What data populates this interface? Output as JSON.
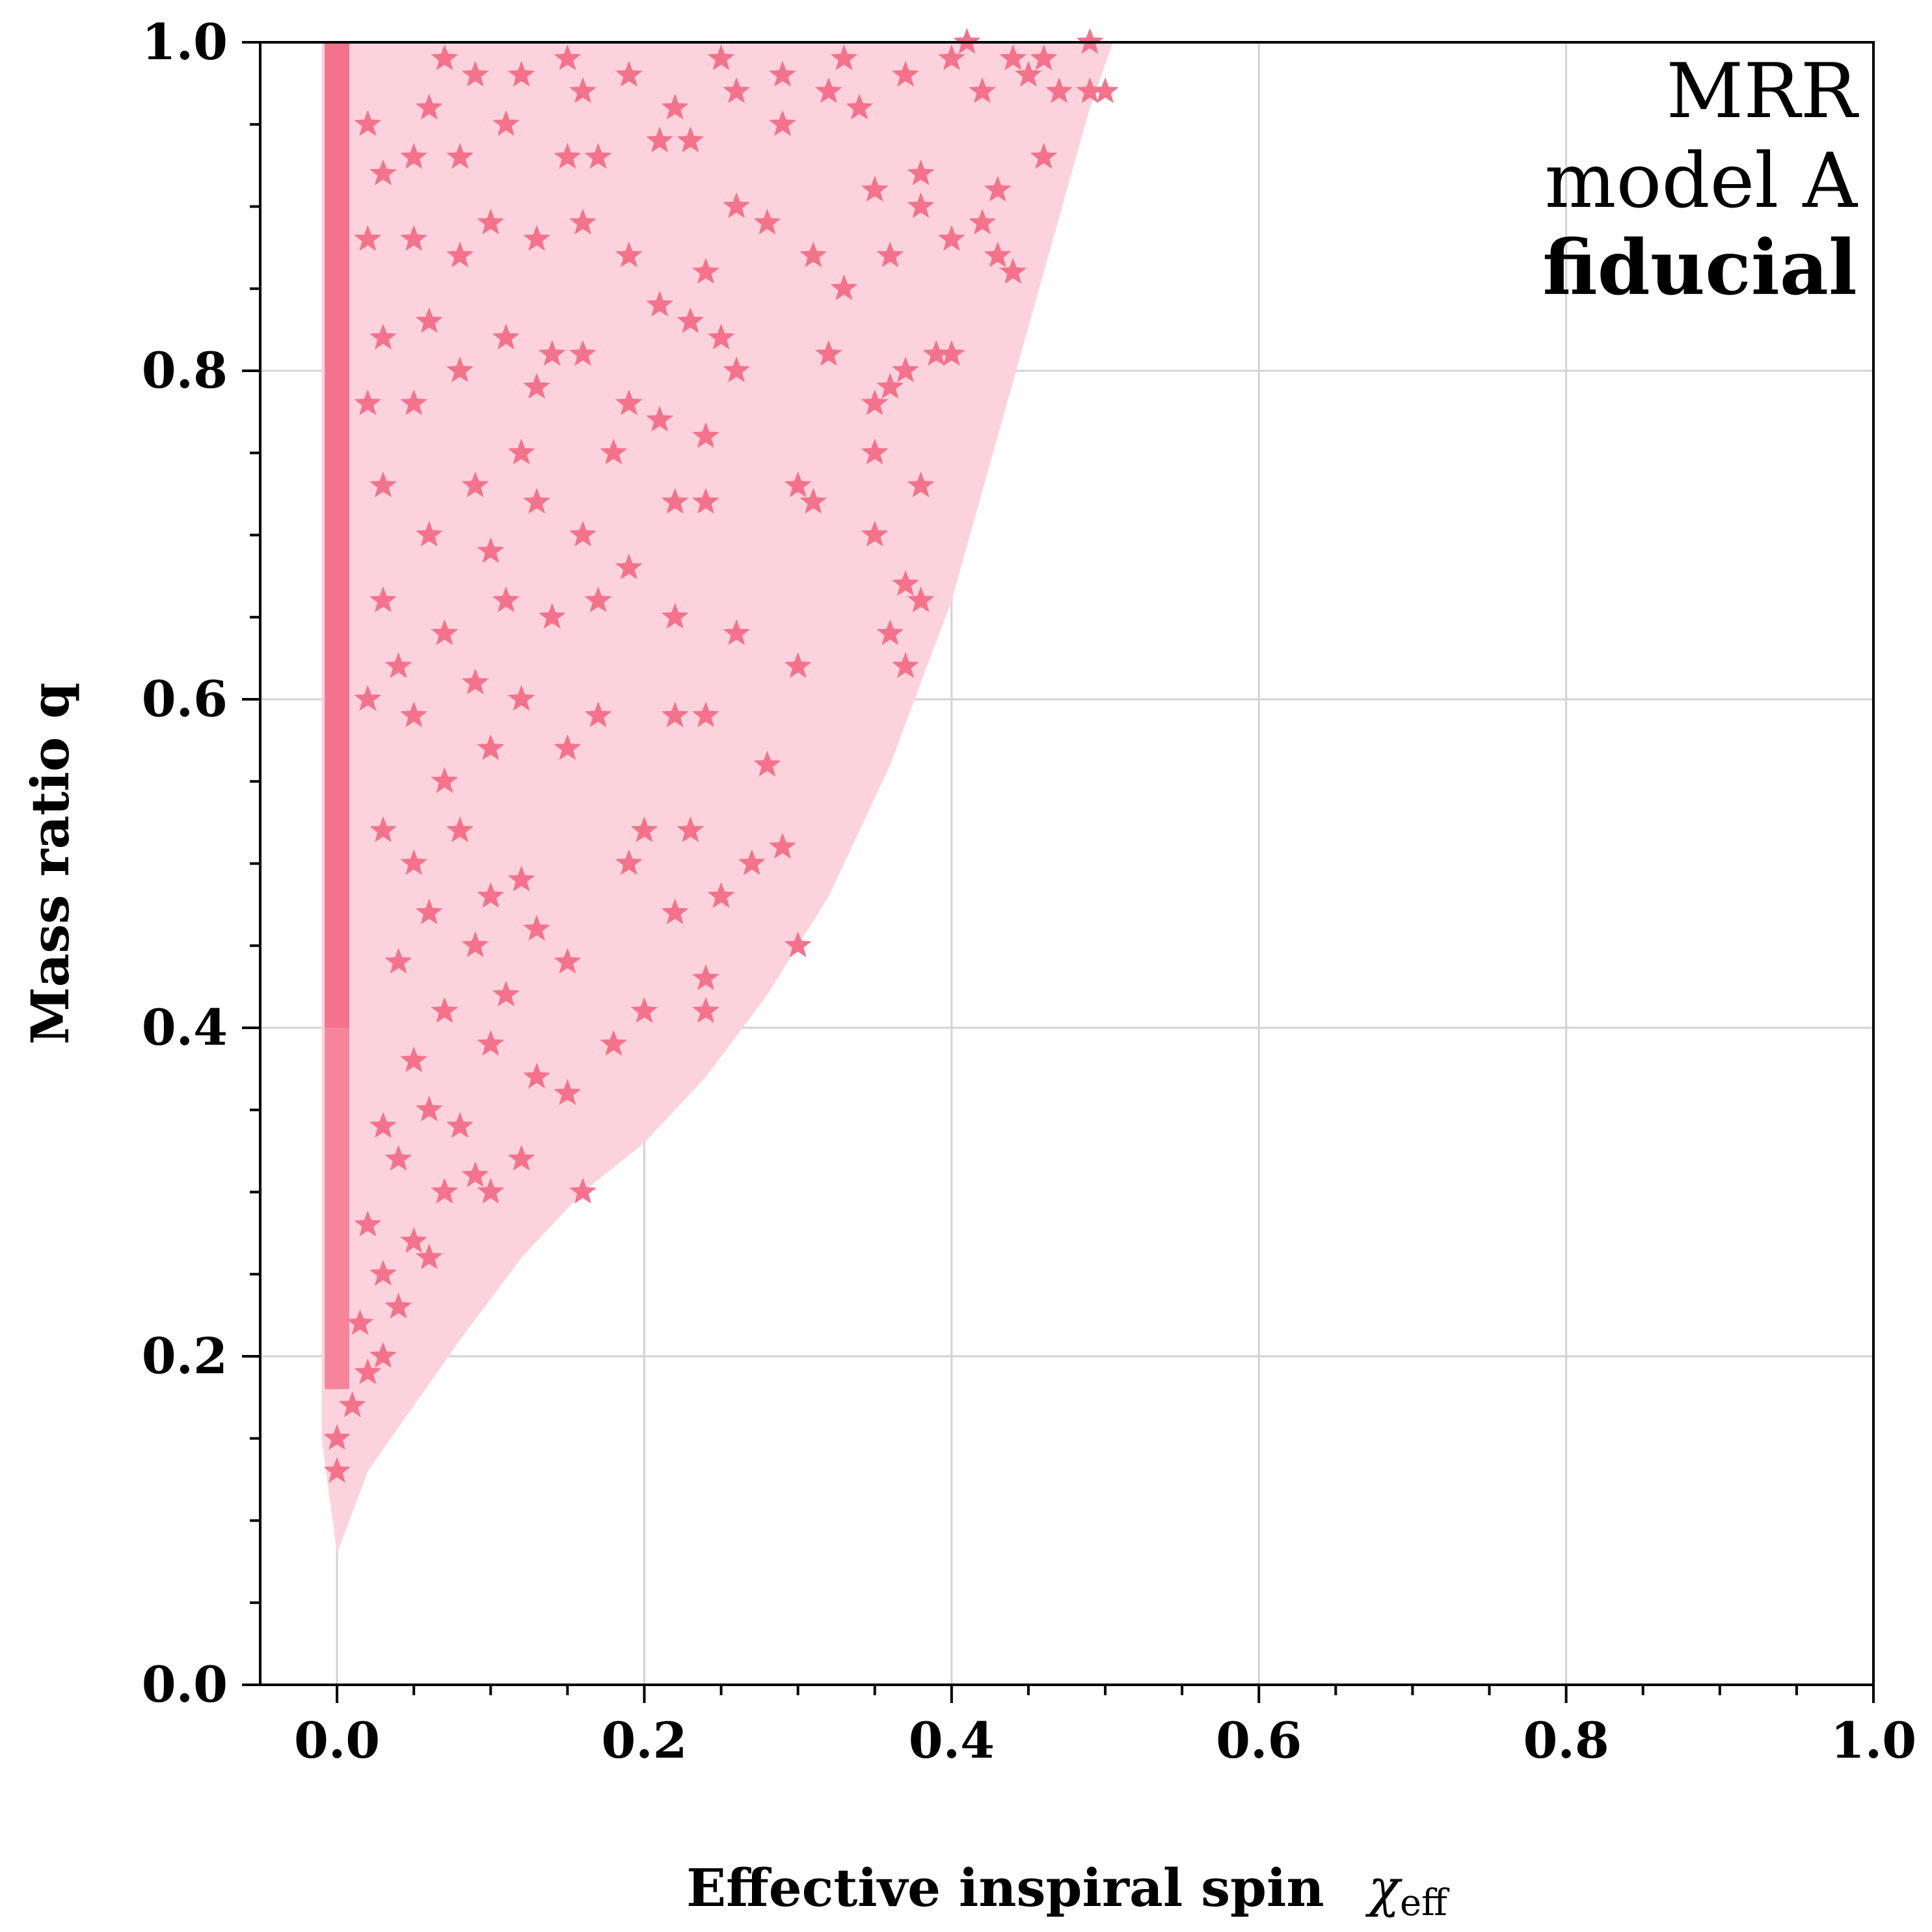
{
  "chart_data": {
    "type": "scatter",
    "xlabel": "Effective inspiral spin",
    "xlabel_symbol": "χ",
    "xlabel_subscript": "eff",
    "ylabel": "Mass ratio q",
    "xlim": [
      -0.05,
      1.0
    ],
    "ylim": [
      0.0,
      1.0
    ],
    "xticks": [
      "0.0",
      "0.2",
      "0.4",
      "0.6",
      "0.8",
      "1.0"
    ],
    "yticks": [
      "0.0",
      "0.2",
      "0.4",
      "0.6",
      "0.8",
      "1.0"
    ],
    "grid": true,
    "annotations": [
      "MRR",
      "model A",
      "fiducial"
    ],
    "colors": {
      "region": "#fcd3dc",
      "points": "#f4728c",
      "grid": "#d3d3d3"
    },
    "series": [
      {
        "marker": "dot",
        "description_points": "population region boundary q vs chi_eff",
        "boundary": [
          [
            0.0,
            0.08
          ],
          [
            0.02,
            0.13
          ],
          [
            0.05,
            0.17
          ],
          [
            0.08,
            0.21
          ],
          [
            0.12,
            0.26
          ],
          [
            0.16,
            0.3
          ],
          [
            0.2,
            0.33
          ],
          [
            0.24,
            0.37
          ],
          [
            0.28,
            0.42
          ],
          [
            0.32,
            0.48
          ],
          [
            0.36,
            0.56
          ],
          [
            0.4,
            0.66
          ],
          [
            0.43,
            0.76
          ],
          [
            0.46,
            0.86
          ],
          [
            0.49,
            0.96
          ],
          [
            0.505,
            1.0
          ]
        ]
      },
      {
        "marker": "star",
        "points": [
          [
            0.0,
            0.13
          ],
          [
            0.0,
            0.15
          ],
          [
            0.01,
            0.17
          ],
          [
            0.02,
            0.19
          ],
          [
            0.03,
            0.2
          ],
          [
            0.015,
            0.22
          ],
          [
            0.04,
            0.23
          ],
          [
            0.03,
            0.25
          ],
          [
            0.06,
            0.26
          ],
          [
            0.05,
            0.27
          ],
          [
            0.02,
            0.28
          ],
          [
            0.07,
            0.3
          ],
          [
            0.04,
            0.32
          ],
          [
            0.09,
            0.31
          ],
          [
            0.1,
            0.3
          ],
          [
            0.03,
            0.34
          ],
          [
            0.06,
            0.35
          ],
          [
            0.08,
            0.34
          ],
          [
            0.12,
            0.32
          ],
          [
            0.15,
            0.36
          ],
          [
            0.13,
            0.37
          ],
          [
            0.05,
            0.38
          ],
          [
            0.1,
            0.39
          ],
          [
            0.07,
            0.41
          ],
          [
            0.11,
            0.42
          ],
          [
            0.16,
            0.3
          ],
          [
            0.04,
            0.44
          ],
          [
            0.09,
            0.45
          ],
          [
            0.13,
            0.46
          ],
          [
            0.06,
            0.47
          ],
          [
            0.1,
            0.48
          ],
          [
            0.15,
            0.44
          ],
          [
            0.05,
            0.5
          ],
          [
            0.08,
            0.52
          ],
          [
            0.19,
            0.5
          ],
          [
            0.12,
            0.49
          ],
          [
            0.03,
            0.52
          ],
          [
            0.07,
            0.55
          ],
          [
            0.1,
            0.57
          ],
          [
            0.15,
            0.57
          ],
          [
            0.17,
            0.59
          ],
          [
            0.2,
            0.52
          ],
          [
            0.22,
            0.47
          ],
          [
            0.2,
            0.41
          ],
          [
            0.18,
            0.39
          ],
          [
            0.24,
            0.41
          ],
          [
            0.24,
            0.43
          ],
          [
            0.23,
            0.52
          ],
          [
            0.25,
            0.48
          ],
          [
            0.27,
            0.5
          ],
          [
            0.29,
            0.51
          ],
          [
            0.28,
            0.56
          ],
          [
            0.22,
            0.59
          ],
          [
            0.24,
            0.59
          ],
          [
            0.02,
            0.6
          ],
          [
            0.05,
            0.59
          ],
          [
            0.09,
            0.61
          ],
          [
            0.12,
            0.6
          ],
          [
            0.04,
            0.62
          ],
          [
            0.07,
            0.64
          ],
          [
            0.11,
            0.66
          ],
          [
            0.14,
            0.65
          ],
          [
            0.17,
            0.66
          ],
          [
            0.19,
            0.68
          ],
          [
            0.22,
            0.65
          ],
          [
            0.26,
            0.64
          ],
          [
            0.3,
            0.62
          ],
          [
            0.03,
            0.66
          ],
          [
            0.06,
            0.7
          ],
          [
            0.1,
            0.69
          ],
          [
            0.13,
            0.72
          ],
          [
            0.16,
            0.7
          ],
          [
            0.03,
            0.73
          ],
          [
            0.09,
            0.73
          ],
          [
            0.12,
            0.75
          ],
          [
            0.18,
            0.75
          ],
          [
            0.21,
            0.77
          ],
          [
            0.24,
            0.76
          ],
          [
            0.22,
            0.72
          ],
          [
            0.24,
            0.72
          ],
          [
            0.3,
            0.73
          ],
          [
            0.31,
            0.72
          ],
          [
            0.35,
            0.75
          ],
          [
            0.35,
            0.7
          ],
          [
            0.38,
            0.73
          ],
          [
            0.37,
            0.67
          ],
          [
            0.38,
            0.66
          ],
          [
            0.36,
            0.64
          ],
          [
            0.37,
            0.62
          ],
          [
            0.3,
            0.45
          ],
          [
            0.02,
            0.78
          ],
          [
            0.05,
            0.78
          ],
          [
            0.08,
            0.8
          ],
          [
            0.11,
            0.82
          ],
          [
            0.14,
            0.81
          ],
          [
            0.13,
            0.79
          ],
          [
            0.03,
            0.82
          ],
          [
            0.06,
            0.83
          ],
          [
            0.16,
            0.81
          ],
          [
            0.19,
            0.78
          ],
          [
            0.23,
            0.83
          ],
          [
            0.25,
            0.82
          ],
          [
            0.26,
            0.8
          ],
          [
            0.32,
            0.81
          ],
          [
            0.35,
            0.78
          ],
          [
            0.37,
            0.8
          ],
          [
            0.36,
            0.79
          ],
          [
            0.39,
            0.81
          ],
          [
            0.4,
            0.81
          ],
          [
            0.02,
            0.88
          ],
          [
            0.05,
            0.88
          ],
          [
            0.08,
            0.87
          ],
          [
            0.1,
            0.89
          ],
          [
            0.13,
            0.88
          ],
          [
            0.16,
            0.89
          ],
          [
            0.19,
            0.87
          ],
          [
            0.21,
            0.84
          ],
          [
            0.24,
            0.86
          ],
          [
            0.28,
            0.89
          ],
          [
            0.31,
            0.87
          ],
          [
            0.33,
            0.85
          ],
          [
            0.36,
            0.87
          ],
          [
            0.38,
            0.9
          ],
          [
            0.4,
            0.88
          ],
          [
            0.43,
            0.87
          ],
          [
            0.44,
            0.86
          ],
          [
            0.03,
            0.92
          ],
          [
            0.05,
            0.93
          ],
          [
            0.08,
            0.93
          ],
          [
            0.11,
            0.95
          ],
          [
            0.15,
            0.93
          ],
          [
            0.17,
            0.93
          ],
          [
            0.21,
            0.94
          ],
          [
            0.23,
            0.94
          ],
          [
            0.26,
            0.9
          ],
          [
            0.29,
            0.95
          ],
          [
            0.35,
            0.91
          ],
          [
            0.38,
            0.92
          ],
          [
            0.42,
            0.89
          ],
          [
            0.43,
            0.91
          ],
          [
            0.46,
            0.93
          ],
          [
            0.02,
            0.95
          ],
          [
            0.06,
            0.96
          ],
          [
            0.09,
            0.98
          ],
          [
            0.12,
            0.98
          ],
          [
            0.16,
            0.97
          ],
          [
            0.19,
            0.98
          ],
          [
            0.22,
            0.96
          ],
          [
            0.26,
            0.97
          ],
          [
            0.29,
            0.98
          ],
          [
            0.32,
            0.97
          ],
          [
            0.34,
            0.96
          ],
          [
            0.37,
            0.98
          ],
          [
            0.4,
            0.99
          ],
          [
            0.42,
            0.97
          ],
          [
            0.45,
            0.98
          ],
          [
            0.47,
            0.97
          ],
          [
            0.49,
            0.97
          ],
          [
            0.5,
            0.97
          ],
          [
            0.07,
            0.99
          ],
          [
            0.15,
            0.99
          ],
          [
            0.25,
            0.99
          ],
          [
            0.33,
            0.99
          ],
          [
            0.41,
            1.0
          ],
          [
            0.44,
            0.99
          ],
          [
            0.46,
            0.99
          ],
          [
            0.49,
            1.0
          ]
        ]
      }
    ]
  }
}
